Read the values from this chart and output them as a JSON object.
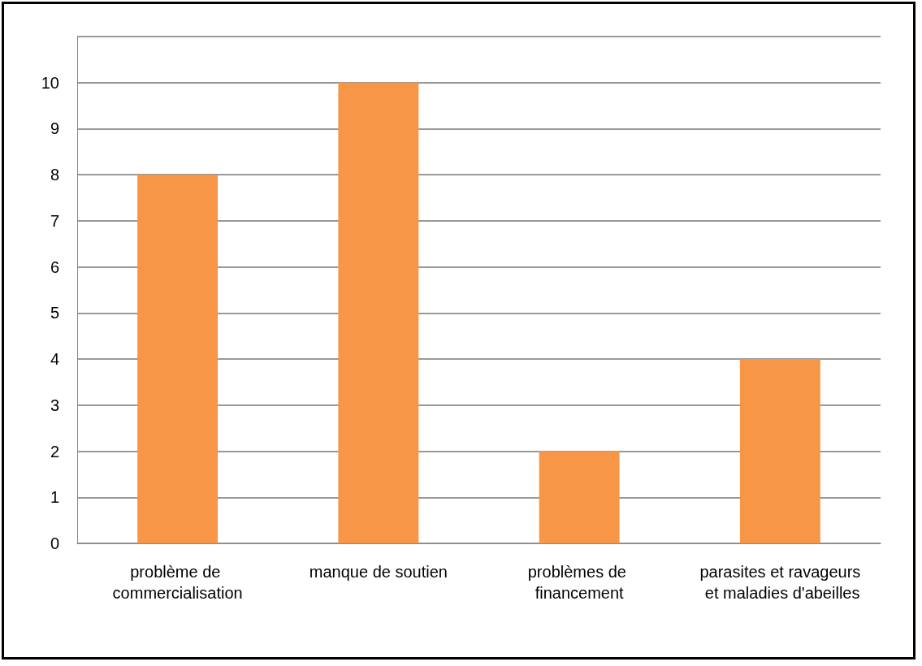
{
  "chart_data": {
    "type": "bar",
    "categories": [
      "problème de commercialisation",
      "manque de soutien",
      "problèmes de financement",
      "parasites et ravageurs et maladies d'abeilles"
    ],
    "values": [
      8,
      10,
      2,
      4
    ],
    "color": "#f79646",
    "ylim": [
      0,
      11
    ],
    "yticks": [
      0,
      1,
      2,
      3,
      4,
      5,
      6,
      7,
      8,
      9,
      10,
      {
        "value": 11,
        "label": null
      }
    ],
    "grid": "y"
  }
}
